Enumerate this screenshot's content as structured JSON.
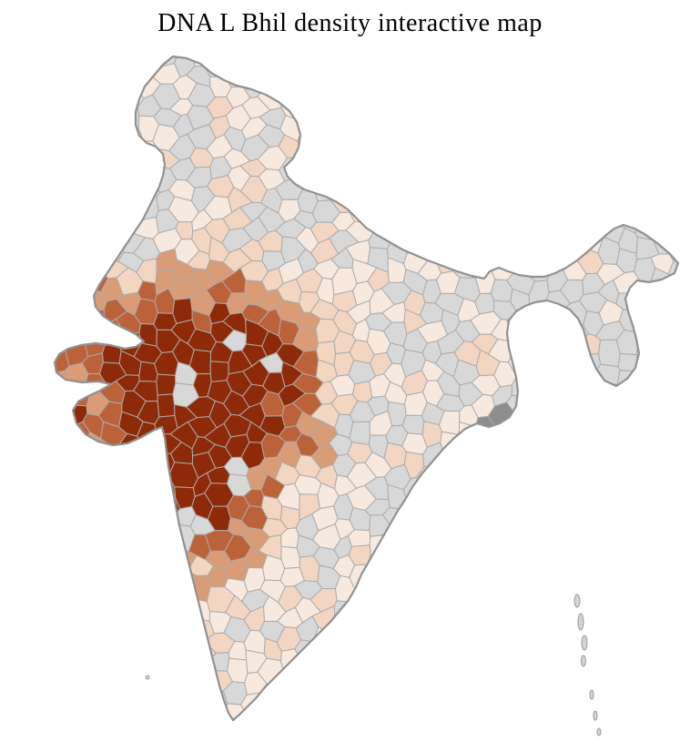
{
  "page": {
    "title": "DNA L Bhil density interactive map"
  },
  "map": {
    "name": "india-district-density-choropleth",
    "colors": {
      "background": "#ffffff",
      "no_data_fill": "#d8d8d8",
      "density_scale": [
        "#f8e9de",
        "#f2d6c2",
        "#d99c77",
        "#bc6239",
        "#8e2a07"
      ],
      "district_border": "#ababab",
      "country_border": "#919191",
      "delta_fill": "#8d8d8d",
      "island_fill": "#d4d4d4",
      "island_border": "#9a9a9a"
    },
    "density_high_color": "#8e2a07",
    "density_low_color": "#f8e9de",
    "no_data_color": "#d8d8d8"
  }
}
